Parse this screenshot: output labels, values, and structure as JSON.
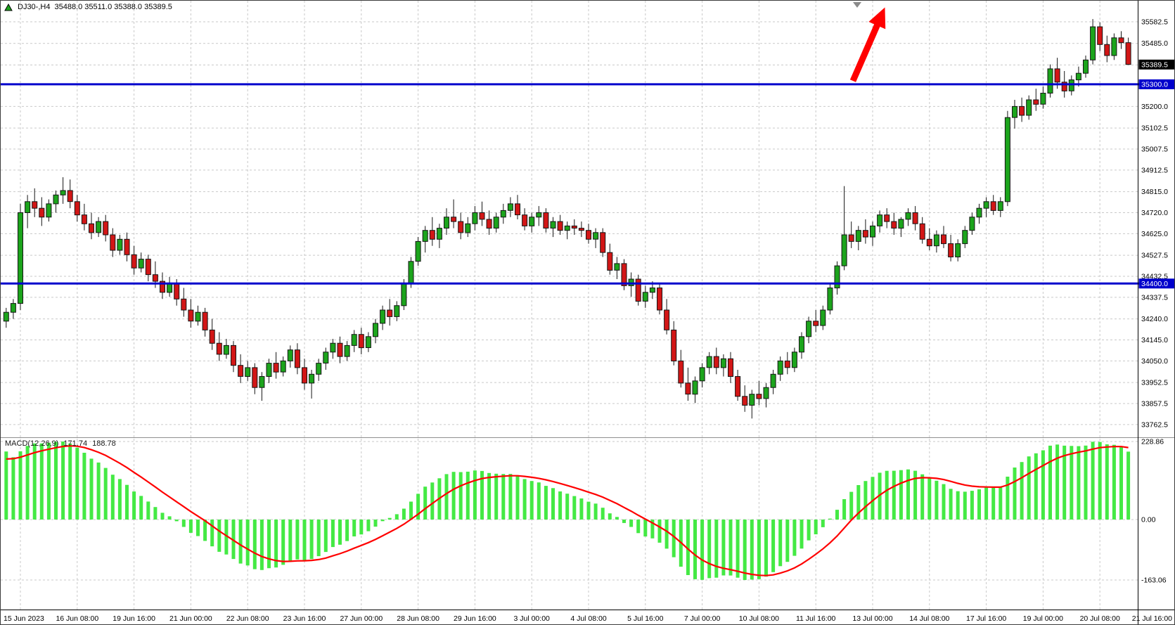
{
  "window": {
    "symbol_label": "DJ30-,H4",
    "ohlc_label": "35488.0 35511.0 35388.0 35389.5"
  },
  "macd_panel": {
    "label": "MACD(12,26,9)",
    "value_main": "171.74",
    "value_signal": "188.78",
    "axis_labels": [
      {
        "text": "228.86",
        "value": 228.86
      },
      {
        "text": "0.00",
        "value": 0
      },
      {
        "text": "-163.06",
        "value": -163.06
      }
    ]
  },
  "price_axis": {
    "labels": [
      {
        "text": "35582.5",
        "value": 35582.5
      },
      {
        "text": "35485.0",
        "value": 35485.0
      },
      {
        "text": "35200.0",
        "value": 35200.0
      },
      {
        "text": "35102.5",
        "value": 35102.5
      },
      {
        "text": "35007.5",
        "value": 35007.5
      },
      {
        "text": "34912.5",
        "value": 34912.5
      },
      {
        "text": "34815.0",
        "value": 34815.0
      },
      {
        "text": "34720.0",
        "value": 34720.0
      },
      {
        "text": "34625.0",
        "value": 34625.0
      },
      {
        "text": "34527.5",
        "value": 34527.5
      },
      {
        "text": "34432.5",
        "value": 34432.5
      },
      {
        "text": "34337.5",
        "value": 34337.5
      },
      {
        "text": "34240.0",
        "value": 34240.0
      },
      {
        "text": "34145.0",
        "value": 34145.0
      },
      {
        "text": "34050.0",
        "value": 34050.0
      },
      {
        "text": "33952.5",
        "value": 33952.5
      },
      {
        "text": "33857.5",
        "value": 33857.5
      },
      {
        "text": "33762.5",
        "value": 33762.5
      }
    ],
    "unlabeled_gridlines": [
      35387.5
    ],
    "current_price": {
      "text": "35389.5",
      "value": 35389.5
    },
    "levels": [
      {
        "text": "35300.0",
        "value": 35300.0
      },
      {
        "text": "34400.0",
        "value": 34400.0
      }
    ]
  },
  "time_axis": {
    "labels": [
      {
        "text": "15 Jun 2023",
        "bar": 2
      },
      {
        "text": "16 Jun 08:00",
        "bar": 10
      },
      {
        "text": "19 Jun 16:00",
        "bar": 18
      },
      {
        "text": "21 Jun 00:00",
        "bar": 26
      },
      {
        "text": "22 Jun 08:00",
        "bar": 34
      },
      {
        "text": "23 Jun 16:00",
        "bar": 42
      },
      {
        "text": "27 Jun 00:00",
        "bar": 50
      },
      {
        "text": "28 Jun 08:00",
        "bar": 58
      },
      {
        "text": "29 Jun 16:00",
        "bar": 66
      },
      {
        "text": "3 Jul 00:00",
        "bar": 74
      },
      {
        "text": "4 Jul 08:00",
        "bar": 82
      },
      {
        "text": "5 Jul 16:00",
        "bar": 90
      },
      {
        "text": "7 Jul 00:00",
        "bar": 98
      },
      {
        "text": "10 Jul 08:00",
        "bar": 106
      },
      {
        "text": "11 Jul 16:00",
        "bar": 114
      },
      {
        "text": "13 Jul 00:00",
        "bar": 122
      },
      {
        "text": "14 Jul 08:00",
        "bar": 130
      },
      {
        "text": "17 Jul 16:00",
        "bar": 138
      },
      {
        "text": "19 Jul 00:00",
        "bar": 146
      },
      {
        "text": "20 Jul 08:00",
        "bar": 154
      },
      {
        "text": "21 Jul 16:00",
        "bar": 162
      }
    ]
  },
  "chart_data": {
    "type": "candlestick_with_macd",
    "symbol": "DJ30-",
    "timeframe": "H4",
    "x_range": "15 Jun 2023 - 21 Jul 2023",
    "price_range_visible": [
      33762.5,
      35582.5
    ],
    "last_bar_ohlc": {
      "open": 35488.0,
      "high": 35511.0,
      "low": 35388.0,
      "close": 35389.5
    },
    "horizontal_lines": [
      35300.0,
      34400.0
    ],
    "macd": {
      "settings": "12,26,9",
      "value_main": 171.74,
      "value_signal": 188.78,
      "scale_max": 228.86,
      "scale_min": -163.06
    },
    "candles_ohlc": [
      [
        34230,
        34290,
        34200,
        34270
      ],
      [
        34270,
        34330,
        34240,
        34310
      ],
      [
        34310,
        34760,
        34280,
        34720
      ],
      [
        34720,
        34800,
        34650,
        34770
      ],
      [
        34770,
        34830,
        34700,
        34740
      ],
      [
        34740,
        34790,
        34660,
        34700
      ],
      [
        34700,
        34780,
        34680,
        34760
      ],
      [
        34760,
        34820,
        34720,
        34800
      ],
      [
        34800,
        34880,
        34760,
        34820
      ],
      [
        34820,
        34870,
        34740,
        34770
      ],
      [
        34770,
        34800,
        34680,
        34710
      ],
      [
        34710,
        34760,
        34640,
        34670
      ],
      [
        34670,
        34720,
        34600,
        34630
      ],
      [
        34630,
        34700,
        34610,
        34680
      ],
      [
        34680,
        34710,
        34590,
        34620
      ],
      [
        34620,
        34650,
        34520,
        34550
      ],
      [
        34550,
        34620,
        34530,
        34600
      ],
      [
        34600,
        34630,
        34500,
        34530
      ],
      [
        34530,
        34570,
        34440,
        34470
      ],
      [
        34470,
        34540,
        34450,
        34510
      ],
      [
        34510,
        34530,
        34410,
        34440
      ],
      [
        34440,
        34500,
        34380,
        34410
      ],
      [
        34410,
        34450,
        34330,
        34360
      ],
      [
        34360,
        34430,
        34340,
        34400
      ],
      [
        34400,
        34420,
        34300,
        34330
      ],
      [
        34330,
        34380,
        34250,
        34280
      ],
      [
        34280,
        34330,
        34200,
        34230
      ],
      [
        34230,
        34300,
        34210,
        34270
      ],
      [
        34270,
        34290,
        34160,
        34190
      ],
      [
        34190,
        34240,
        34100,
        34130
      ],
      [
        34130,
        34180,
        34050,
        34080
      ],
      [
        34080,
        34150,
        34060,
        34120
      ],
      [
        34120,
        34140,
        34000,
        34030
      ],
      [
        34030,
        34080,
        33950,
        33980
      ],
      [
        33980,
        34050,
        33960,
        34020
      ],
      [
        34020,
        34040,
        33900,
        33930
      ],
      [
        33930,
        34000,
        33870,
        33980
      ],
      [
        33980,
        34060,
        33950,
        34040
      ],
      [
        34040,
        34090,
        33970,
        34000
      ],
      [
        34000,
        34070,
        33980,
        34050
      ],
      [
        34050,
        34120,
        34020,
        34100
      ],
      [
        34100,
        34130,
        33990,
        34020
      ],
      [
        34020,
        34060,
        33920,
        33950
      ],
      [
        33950,
        34010,
        33880,
        33990
      ],
      [
        33990,
        34060,
        33960,
        34040
      ],
      [
        34040,
        34110,
        34010,
        34090
      ],
      [
        34090,
        34150,
        34060,
        34130
      ],
      [
        34130,
        34160,
        34040,
        34070
      ],
      [
        34070,
        34140,
        34050,
        34120
      ],
      [
        34120,
        34190,
        34090,
        34170
      ],
      [
        34170,
        34200,
        34080,
        34110
      ],
      [
        34110,
        34180,
        34090,
        34160
      ],
      [
        34160,
        34240,
        34130,
        34220
      ],
      [
        34220,
        34300,
        34190,
        34280
      ],
      [
        34280,
        34330,
        34210,
        34250
      ],
      [
        34250,
        34320,
        34230,
        34300
      ],
      [
        34300,
        34420,
        34280,
        34400
      ],
      [
        34400,
        34520,
        34380,
        34500
      ],
      [
        34500,
        34610,
        34480,
        34590
      ],
      [
        34590,
        34660,
        34540,
        34640
      ],
      [
        34640,
        34700,
        34570,
        34600
      ],
      [
        34600,
        34670,
        34560,
        34650
      ],
      [
        34650,
        34740,
        34620,
        34700
      ],
      [
        34700,
        34780,
        34650,
        34680
      ],
      [
        34680,
        34720,
        34600,
        34630
      ],
      [
        34630,
        34700,
        34610,
        34670
      ],
      [
        34670,
        34750,
        34640,
        34720
      ],
      [
        34720,
        34770,
        34660,
        34690
      ],
      [
        34690,
        34730,
        34620,
        34650
      ],
      [
        34650,
        34720,
        34630,
        34700
      ],
      [
        34700,
        34760,
        34670,
        34730
      ],
      [
        34730,
        34790,
        34700,
        34760
      ],
      [
        34760,
        34800,
        34690,
        34710
      ],
      [
        34710,
        34740,
        34640,
        34660
      ],
      [
        34660,
        34720,
        34630,
        34700
      ],
      [
        34700,
        34750,
        34660,
        34720
      ],
      [
        34720,
        34740,
        34630,
        34650
      ],
      [
        34650,
        34700,
        34610,
        34680
      ],
      [
        34680,
        34710,
        34620,
        34640
      ],
      [
        34640,
        34680,
        34600,
        34660
      ],
      [
        34660,
        34690,
        34620,
        34650
      ],
      [
        34650,
        34680,
        34610,
        34640
      ],
      [
        34640,
        34670,
        34580,
        34600
      ],
      [
        34600,
        34650,
        34560,
        34630
      ],
      [
        34630,
        34650,
        34520,
        34540
      ],
      [
        34540,
        34580,
        34440,
        34460
      ],
      [
        34460,
        34520,
        34420,
        34490
      ],
      [
        34490,
        34510,
        34370,
        34390
      ],
      [
        34390,
        34450,
        34340,
        34420
      ],
      [
        34420,
        34440,
        34300,
        34320
      ],
      [
        34320,
        34390,
        34290,
        34360
      ],
      [
        34360,
        34410,
        34330,
        34380
      ],
      [
        34380,
        34400,
        34260,
        34280
      ],
      [
        34280,
        34330,
        34170,
        34190
      ],
      [
        34190,
        34230,
        34030,
        34050
      ],
      [
        34050,
        34100,
        33930,
        33950
      ],
      [
        33950,
        34020,
        33870,
        33900
      ],
      [
        33900,
        33980,
        33860,
        33960
      ],
      [
        33960,
        34040,
        33930,
        34020
      ],
      [
        34020,
        34090,
        33990,
        34070
      ],
      [
        34070,
        34110,
        33990,
        34020
      ],
      [
        34020,
        34080,
        33980,
        34060
      ],
      [
        34060,
        34090,
        33950,
        33980
      ],
      [
        33980,
        34010,
        33870,
        33890
      ],
      [
        33890,
        33940,
        33820,
        33850
      ],
      [
        33850,
        33920,
        33790,
        33900
      ],
      [
        33900,
        33960,
        33850,
        33880
      ],
      [
        33880,
        33950,
        33840,
        33930
      ],
      [
        33930,
        34010,
        33900,
        33990
      ],
      [
        33990,
        34070,
        33960,
        34050
      ],
      [
        34050,
        34090,
        33990,
        34020
      ],
      [
        34020,
        34110,
        34000,
        34090
      ],
      [
        34090,
        34180,
        34060,
        34160
      ],
      [
        34160,
        34250,
        34130,
        34230
      ],
      [
        34230,
        34280,
        34180,
        34210
      ],
      [
        34210,
        34300,
        34190,
        34280
      ],
      [
        34280,
        34400,
        34260,
        34380
      ],
      [
        34380,
        34500,
        34350,
        34480
      ],
      [
        34480,
        34840,
        34460,
        34620
      ],
      [
        34620,
        34680,
        34560,
        34590
      ],
      [
        34590,
        34660,
        34550,
        34640
      ],
      [
        34640,
        34690,
        34580,
        34610
      ],
      [
        34610,
        34680,
        34570,
        34660
      ],
      [
        34660,
        34730,
        34630,
        34710
      ],
      [
        34710,
        34740,
        34650,
        34680
      ],
      [
        34680,
        34720,
        34620,
        34650
      ],
      [
        34650,
        34700,
        34610,
        34690
      ],
      [
        34690,
        34740,
        34660,
        34720
      ],
      [
        34720,
        34750,
        34640,
        34670
      ],
      [
        34670,
        34700,
        34580,
        34600
      ],
      [
        34600,
        34650,
        34550,
        34570
      ],
      [
        34570,
        34640,
        34540,
        34620
      ],
      [
        34620,
        34660,
        34560,
        34580
      ],
      [
        34580,
        34620,
        34500,
        34520
      ],
      [
        34520,
        34600,
        34500,
        34580
      ],
      [
        34580,
        34660,
        34560,
        34640
      ],
      [
        34640,
        34720,
        34620,
        34700
      ],
      [
        34700,
        34760,
        34670,
        34740
      ],
      [
        34740,
        34790,
        34700,
        34770
      ],
      [
        34770,
        34800,
        34710,
        34730
      ],
      [
        34730,
        34790,
        34700,
        34770
      ],
      [
        34770,
        35180,
        34750,
        35150
      ],
      [
        35150,
        35230,
        35100,
        35200
      ],
      [
        35200,
        35240,
        35130,
        35160
      ],
      [
        35160,
        35250,
        35140,
        35230
      ],
      [
        35230,
        35280,
        35180,
        35210
      ],
      [
        35210,
        35290,
        35190,
        35260
      ],
      [
        35260,
        35390,
        35240,
        35370
      ],
      [
        35370,
        35420,
        35280,
        35310
      ],
      [
        35310,
        35360,
        35240,
        35270
      ],
      [
        35270,
        35340,
        35250,
        35320
      ],
      [
        35320,
        35380,
        35290,
        35350
      ],
      [
        35350,
        35430,
        35330,
        35410
      ],
      [
        35410,
        35595,
        35390,
        35560
      ],
      [
        35560,
        35580,
        35450,
        35480
      ],
      [
        35480,
        35520,
        35400,
        35430
      ],
      [
        35430,
        35530,
        35410,
        35510
      ],
      [
        35510,
        35540,
        35460,
        35488
      ],
      [
        35488,
        35511,
        35388,
        35389.5
      ]
    ]
  },
  "annotations": {
    "trend_arrow": {
      "direction": "up-right",
      "color": "#FF0000"
    },
    "chart_shift_marker": {
      "shape": "triangle-down"
    }
  },
  "colors": {
    "bull": "#1CA41C",
    "bear": "#D21616",
    "outline": "#151515",
    "macd_hist": "#44E944",
    "macd_signal": "#FF0000",
    "hline": "#0000CC",
    "grid": "#C9C9C9",
    "current_price_bg": "#000000",
    "axis_text": "#000000"
  }
}
